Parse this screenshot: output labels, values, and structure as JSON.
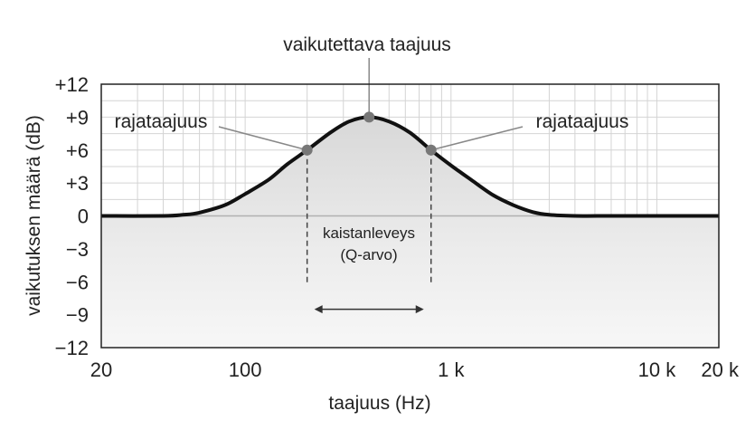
{
  "chart_data": {
    "type": "line",
    "title": "",
    "xlabel": "taajuus (Hz)",
    "ylabel": "vaikutuksen määrä (dB)",
    "x_scale": "log",
    "xlim": [
      20,
      20000
    ],
    "ylim": [
      -12,
      12
    ],
    "grid": true,
    "x_ticks": [
      {
        "value": 20,
        "label": "20"
      },
      {
        "value": 100,
        "label": "100"
      },
      {
        "value": 1000,
        "label": "1 k"
      },
      {
        "value": 10000,
        "label": "10 k"
      },
      {
        "value": 20000,
        "label": "20 k"
      }
    ],
    "y_ticks": [
      {
        "value": 12,
        "label": "+12"
      },
      {
        "value": 9,
        "label": "+9"
      },
      {
        "value": 6,
        "label": "+6"
      },
      {
        "value": 3,
        "label": "+3"
      },
      {
        "value": 0,
        "label": "0"
      },
      {
        "value": -3,
        "label": "−3"
      },
      {
        "value": -6,
        "label": "−6"
      },
      {
        "value": -9,
        "label": "−9"
      },
      {
        "value": -12,
        "label": "−12"
      }
    ],
    "curve": {
      "x": [
        20,
        40,
        50,
        60,
        80,
        100,
        130,
        160,
        200,
        260,
        320,
        400,
        500,
        630,
        800,
        1000,
        1250,
        1600,
        2000,
        2500,
        3000,
        4000,
        6000,
        10000,
        20000
      ],
      "y": [
        0,
        0,
        0.1,
        0.3,
        1.0,
        2.0,
        3.3,
        4.7,
        6.0,
        7.6,
        8.6,
        9.0,
        8.6,
        7.6,
        6.0,
        4.6,
        3.3,
        1.9,
        1.0,
        0.35,
        0.1,
        0,
        0,
        0,
        0
      ]
    },
    "points": [
      {
        "x": 200,
        "y": 6
      },
      {
        "x": 400,
        "y": 9
      },
      {
        "x": 800,
        "y": 6
      }
    ],
    "bandwidth": {
      "x1": 200,
      "x2": 800,
      "y": -8.5
    },
    "annotations": {
      "center": "vaikutettava taajuus",
      "cutoff_left": "rajataajuus",
      "cutoff_right": "rajataajuus",
      "bandwidth_line1": "kaistanleveys",
      "bandwidth_line2": "(Q-arvo)"
    },
    "colors": {
      "curve": "#111111",
      "grid": "#d4d4d4",
      "marker": "#777777"
    }
  }
}
